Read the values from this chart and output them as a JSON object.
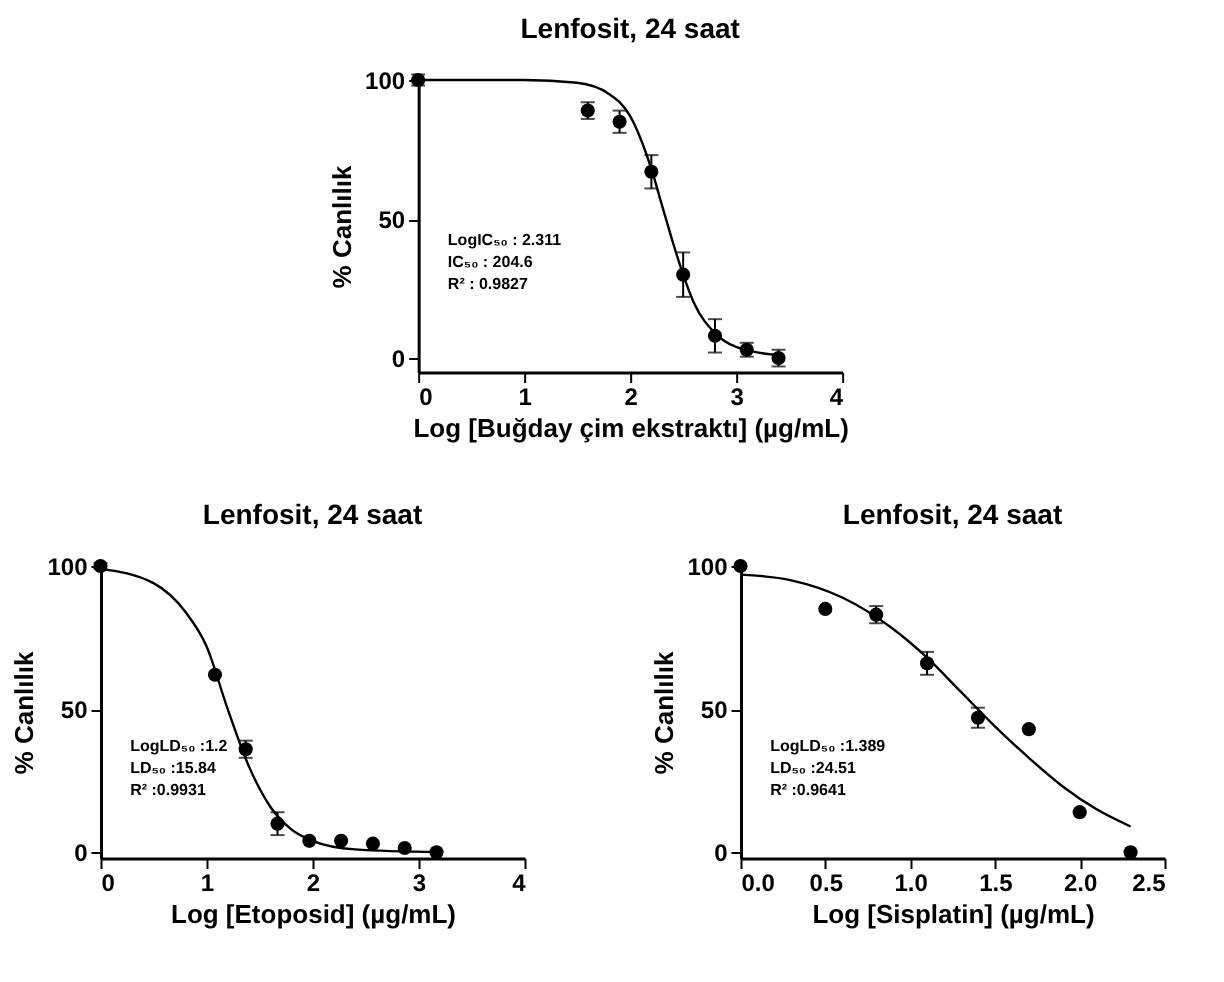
{
  "chart_data": [
    {
      "type": "scatter",
      "title": "Lenfosit, 24 saat",
      "xlabel": "Log [Buğday çim ekstraktı] (µg/mL)",
      "ylabel": "% Canlılık",
      "xlim": [
        0,
        4
      ],
      "xticks": [
        0,
        1,
        2,
        3,
        4
      ],
      "ylim": [
        -5,
        100
      ],
      "yticks": [
        0,
        50,
        100
      ],
      "annotations": [
        "LogIC₅₀ : 2.311",
        "IC₅₀ : 204.6",
        "R² : 0.9827"
      ],
      "series": [
        {
          "marker": "circle",
          "color": "#000000",
          "x": [
            0,
            1.6,
            1.9,
            2.2,
            2.5,
            2.8,
            3.1,
            3.4
          ],
          "values": [
            100,
            89,
            85,
            67,
            30,
            8,
            3,
            0
          ],
          "errors": [
            2,
            3,
            4,
            6,
            8,
            6,
            2.5,
            3
          ]
        },
        {
          "type": "line",
          "color": "#000000",
          "x": [
            0,
            1,
            1.5,
            1.8,
            2,
            2.2,
            2.3,
            2.4,
            2.5,
            2.6,
            2.8,
            3,
            3.4
          ],
          "values": [
            100,
            100,
            99,
            95,
            87,
            68,
            55,
            42,
            30,
            20,
            9,
            4,
            1
          ]
        }
      ]
    },
    {
      "type": "scatter",
      "title": "Lenfosit, 24 saat",
      "xlabel": "Log [Etoposid] (µg/mL)",
      "ylabel": "% Canlılık",
      "xlim": [
        0,
        4
      ],
      "xticks": [
        0,
        1,
        2,
        3,
        4
      ],
      "ylim": [
        -2,
        100
      ],
      "yticks": [
        0,
        50,
        100
      ],
      "annotations": [
        "LogLD₅₀ :1.2",
        "LD₅₀ :15.84",
        "R² :0.9931"
      ],
      "series": [
        {
          "marker": "circle",
          "color": "#000000",
          "x": [
            0,
            1.08,
            1.37,
            1.67,
            1.97,
            2.27,
            2.57,
            2.87,
            3.17
          ],
          "values": [
            100,
            62,
            36,
            10,
            4,
            4,
            3,
            1.5,
            0
          ],
          "errors": [
            1,
            null,
            3,
            4,
            null,
            null,
            null,
            null,
            null
          ]
        },
        {
          "type": "line",
          "color": "#000000",
          "x": [
            0,
            0.5,
            0.8,
            1,
            1.2,
            1.4,
            1.6,
            1.8,
            2,
            2.4,
            3.2
          ],
          "values": [
            99,
            94,
            84,
            72,
            50,
            30,
            16,
            8,
            4,
            1,
            0
          ]
        }
      ]
    },
    {
      "type": "scatter",
      "title": "Lenfosit, 24 saat",
      "xlabel": "Log [Sisplatin] (µg/mL)",
      "ylabel": "% Canlılık",
      "xlim": [
        0,
        2.5
      ],
      "xticks": [
        {
          "value": 0,
          "label": "0.0"
        },
        0.5,
        {
          "value": 1,
          "label": "1.0"
        },
        1.5,
        {
          "value": 2,
          "label": "2.0"
        },
        2.5
      ],
      "ylim": [
        -2,
        100
      ],
      "yticks": [
        0,
        50,
        100
      ],
      "annotations": [
        "LogLD₅₀ :1.389",
        "LD₅₀ :24.51",
        "R² :0.9641"
      ],
      "series": [
        {
          "marker": "circle",
          "color": "#000000",
          "x": [
            0,
            0.5,
            0.8,
            1.1,
            1.4,
            1.7,
            2,
            2.3
          ],
          "values": [
            100,
            85,
            83,
            66,
            47,
            43,
            14,
            0
          ],
          "errors": [
            null,
            null,
            3,
            4,
            3.5,
            null,
            null,
            null
          ]
        },
        {
          "type": "line",
          "color": "#000000",
          "x": [
            0,
            0.3,
            0.6,
            0.9,
            1.1,
            1.3,
            1.5,
            1.7,
            1.9,
            2.1,
            2.3
          ],
          "values": [
            97,
            95,
            89,
            78,
            68,
            56,
            44,
            33,
            23,
            15,
            9
          ]
        }
      ]
    }
  ]
}
